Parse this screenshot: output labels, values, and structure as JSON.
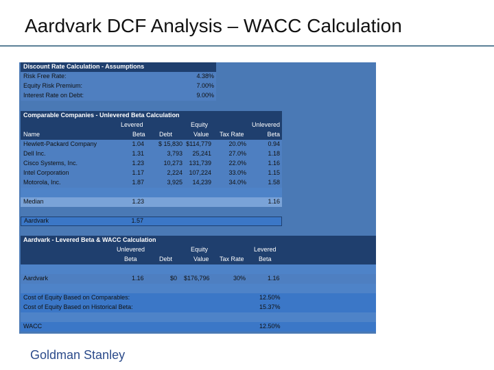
{
  "title": "Aardvark DCF Analysis – WACC Calculation",
  "footer": "Goldman Stanley",
  "assumptions": {
    "header": "Discount Rate Calculation - Assumptions",
    "rows": [
      {
        "label": "Risk Free Rate:",
        "value": "4.38%"
      },
      {
        "label": "Equity Risk Premium:",
        "value": "7.00%"
      },
      {
        "label": "Interest Rate on Debt:",
        "value": "9.00%"
      }
    ]
  },
  "comparables": {
    "header": "Comparable Companies - Unlevered Beta Calculation",
    "col_top": {
      "levered": "Levered",
      "equity": "Equity",
      "unlevered": "Unlevered"
    },
    "col_bottom": {
      "name": "Name",
      "beta": "Beta",
      "debt": "Debt",
      "value": "Value",
      "tax": "Tax Rate",
      "ubeta": "Beta"
    },
    "rows": [
      {
        "name": "Hewlett-Packard Company",
        "beta": "1.04",
        "debt": "$  15,830",
        "value": "$114,779",
        "tax": "20.0%",
        "ubeta": "0.94"
      },
      {
        "name": "Dell Inc.",
        "beta": "1.31",
        "debt": "3,793",
        "value": "25,241",
        "tax": "27.0%",
        "ubeta": "1.18"
      },
      {
        "name": "Cisco Systems, Inc.",
        "beta": "1.23",
        "debt": "10,273",
        "value": "131,739",
        "tax": "22.0%",
        "ubeta": "1.16"
      },
      {
        "name": "Intel Corporation",
        "beta": "1.17",
        "debt": "2,224",
        "value": "107,224",
        "tax": "33.0%",
        "ubeta": "1.15"
      },
      {
        "name": "Motorola, Inc.",
        "beta": "1.87",
        "debt": "3,925",
        "value": "14,239",
        "tax": "34.0%",
        "ubeta": "1.58"
      }
    ],
    "median": {
      "label": "Median",
      "beta": "1.23",
      "ubeta": "1.16"
    }
  },
  "aardvark_row": {
    "label": "Aardvark",
    "beta": "1.57"
  },
  "wacc_calc": {
    "header": "Aardvark - Levered Beta & WACC Calculation",
    "col_top": {
      "unlevered": "Unlevered",
      "equity": "Equity",
      "levered": "Levered"
    },
    "col_bottom": {
      "beta": "Beta",
      "debt": "Debt",
      "value": "Value",
      "tax": "Tax Rate",
      "lbeta": "Beta"
    },
    "row": {
      "label": "Aardvark",
      "ubeta": "1.16",
      "debt": "$0",
      "value": "$176,796",
      "tax": "30%",
      "lbeta": "1.16"
    },
    "coe_comp": {
      "label": "Cost of Equity Based on Comparables:",
      "value": "12.50%"
    },
    "coe_hist": {
      "label": "Cost of Equity Based on Historical Beta:",
      "value": "15.37%"
    },
    "wacc": {
      "label": "WACC",
      "value": "12.50%"
    }
  }
}
